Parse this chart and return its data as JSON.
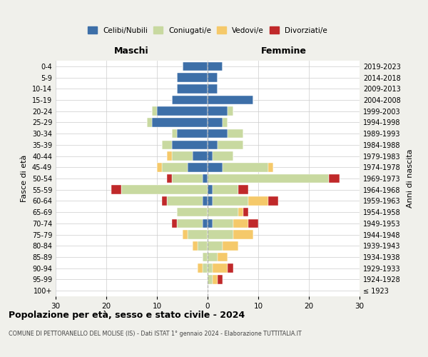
{
  "age_groups": [
    "100+",
    "95-99",
    "90-94",
    "85-89",
    "80-84",
    "75-79",
    "70-74",
    "65-69",
    "60-64",
    "55-59",
    "50-54",
    "45-49",
    "40-44",
    "35-39",
    "30-34",
    "25-29",
    "20-24",
    "15-19",
    "10-14",
    "5-9",
    "0-4"
  ],
  "birth_years": [
    "≤ 1923",
    "1924-1928",
    "1929-1933",
    "1934-1938",
    "1939-1943",
    "1944-1948",
    "1949-1953",
    "1954-1958",
    "1959-1963",
    "1964-1968",
    "1969-1973",
    "1974-1978",
    "1979-1983",
    "1984-1988",
    "1989-1993",
    "1994-1998",
    "1999-2003",
    "2004-2008",
    "2009-2013",
    "2014-2018",
    "2019-2023"
  ],
  "maschi": {
    "celibi": [
      0,
      0,
      0,
      0,
      0,
      0,
      1,
      0,
      1,
      0,
      1,
      4,
      3,
      7,
      6,
      11,
      10,
      7,
      6,
      6,
      5
    ],
    "coniugati": [
      0,
      0,
      1,
      1,
      2,
      4,
      5,
      6,
      7,
      17,
      6,
      5,
      4,
      2,
      1,
      1,
      1,
      0,
      0,
      0,
      0
    ],
    "vedovi": [
      0,
      0,
      1,
      0,
      1,
      1,
      0,
      0,
      0,
      0,
      0,
      1,
      1,
      0,
      0,
      0,
      0,
      0,
      0,
      0,
      0
    ],
    "divorziati": [
      0,
      0,
      0,
      0,
      0,
      0,
      1,
      0,
      1,
      2,
      1,
      0,
      0,
      0,
      0,
      0,
      0,
      0,
      0,
      0,
      0
    ]
  },
  "femmine": {
    "nubili": [
      0,
      0,
      0,
      0,
      0,
      0,
      1,
      0,
      1,
      1,
      0,
      3,
      1,
      2,
      4,
      3,
      4,
      9,
      2,
      2,
      3
    ],
    "coniugate": [
      0,
      1,
      1,
      2,
      3,
      5,
      4,
      6,
      7,
      5,
      24,
      9,
      4,
      5,
      3,
      1,
      1,
      0,
      0,
      0,
      0
    ],
    "vedove": [
      0,
      1,
      3,
      2,
      3,
      4,
      3,
      1,
      4,
      0,
      0,
      1,
      0,
      0,
      0,
      0,
      0,
      0,
      0,
      0,
      0
    ],
    "divorziate": [
      0,
      1,
      1,
      0,
      0,
      0,
      2,
      1,
      2,
      2,
      2,
      0,
      0,
      0,
      0,
      0,
      0,
      0,
      0,
      0,
      0
    ]
  },
  "colors": {
    "celibi_nubili": "#3d6fa8",
    "coniugati_e": "#c8d9a0",
    "vedovi_e": "#f5c96a",
    "divorziati_e": "#c0292a"
  },
  "xlim": 30,
  "title": "Popolazione per età, sesso e stato civile - 2024",
  "subtitle": "COMUNE DI PETTORANELLO DEL MOLISE (IS) - Dati ISTAT 1° gennaio 2024 - Elaborazione TUTTITALIA.IT",
  "ylabel_left": "Fasce di età",
  "ylabel_right": "Anni di nascita",
  "xlabel_left": "Maschi",
  "xlabel_right": "Femmine",
  "legend_labels": [
    "Celibi/Nubili",
    "Coniugati/e",
    "Vedovi/e",
    "Divorziati/e"
  ],
  "bg_color": "#f0f0eb",
  "plot_bg_color": "#ffffff"
}
